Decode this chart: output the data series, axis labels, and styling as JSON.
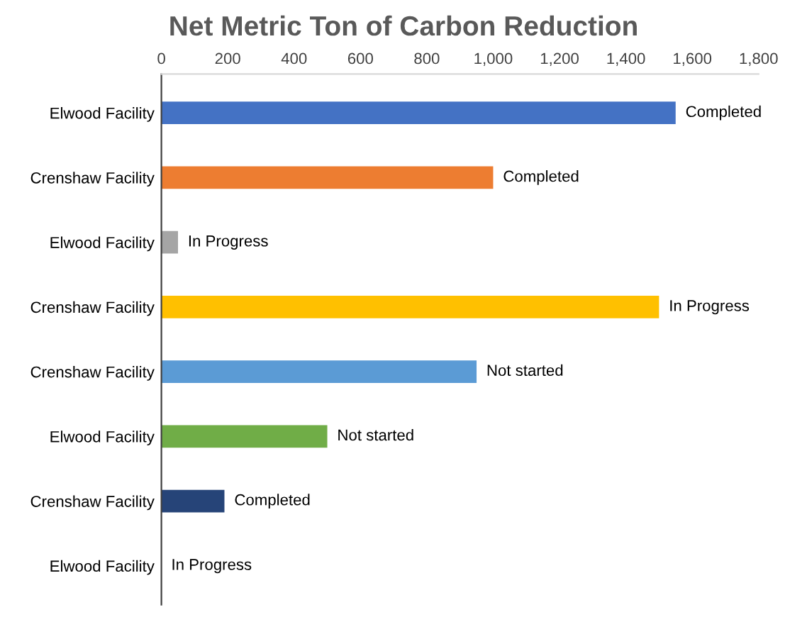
{
  "chart_data": {
    "type": "bar",
    "orientation": "horizontal",
    "title": "Net Metric Ton of Carbon Reduction",
    "categories": [
      "Elwood Facility",
      "Crenshaw Facility",
      "Elwood Facility",
      "Crenshaw Facility",
      "Crenshaw Facility",
      "Elwood Facility",
      "Crenshaw Facility",
      "Elwood Facility"
    ],
    "values": [
      1550,
      1000,
      50,
      1500,
      950,
      500,
      190,
      0
    ],
    "colors": [
      "#4472c4",
      "#ed7d31",
      "#a5a5a5",
      "#ffc000",
      "#5b9bd5",
      "#70ad47",
      "#264478",
      "#4472c4"
    ],
    "value_labels": [
      "Completed",
      "Completed",
      "In Progress",
      "In Progress",
      "Not started",
      "Not started",
      "Completed",
      "In Progress"
    ],
    "xlim": [
      0,
      1800
    ],
    "xticks": [
      0,
      200,
      400,
      600,
      800,
      {
        "value": 1000,
        "label": "1,000"
      },
      {
        "value": 1200,
        "label": "1,200"
      },
      {
        "value": 1400,
        "label": "1,400"
      },
      {
        "value": 1600,
        "label": "1,600"
      },
      {
        "value": 1800,
        "label": "1,800"
      }
    ],
    "grid": false,
    "legend": false
  }
}
